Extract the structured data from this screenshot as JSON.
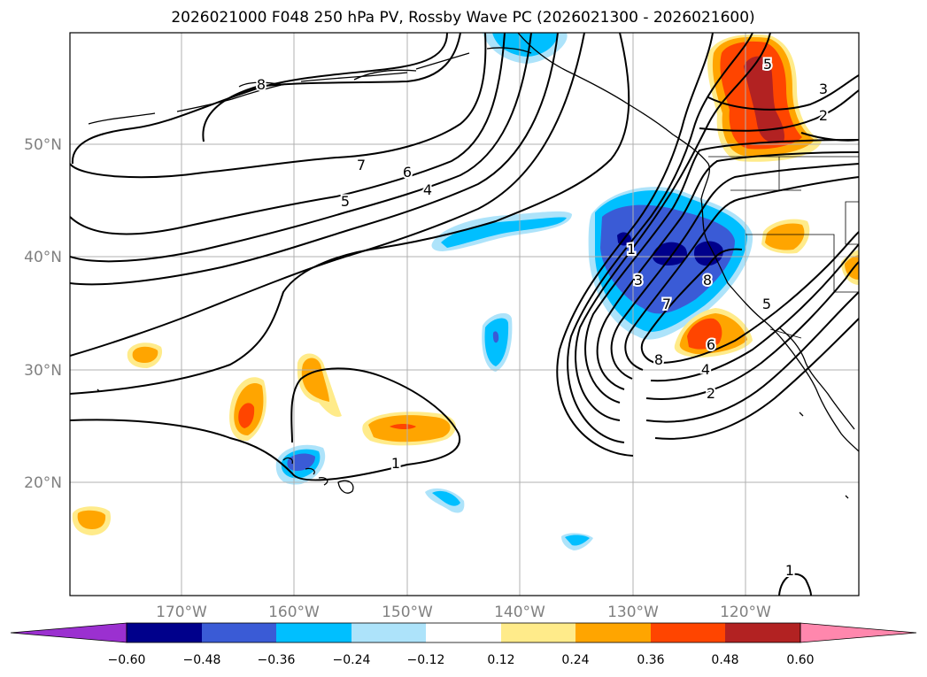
{
  "title": "2026021000 F048 250 hPa PV, Rossby Wave PC (2026021300 - 2026021600)",
  "chart_data": {
    "type": "heatmap",
    "title": "2026021000 F048 250 hPa PV, Rossby Wave PC (2026021300 - 2026021600)",
    "lon_range": [
      -180,
      -110
    ],
    "lat_range": [
      10,
      60
    ],
    "grid": true,
    "lon_ticks": [
      -170,
      -160,
      -150,
      -140,
      -130,
      -120
    ],
    "lon_tick_labels": [
      "170°W",
      "160°W",
      "150°W",
      "140°W",
      "130°W",
      "120°W"
    ],
    "lat_ticks": [
      20,
      30,
      40,
      50
    ],
    "lat_tick_labels": [
      "20°N",
      "30°N",
      "40°N",
      "50°N"
    ],
    "colorbar": {
      "orientation": "horizontal",
      "extend": "both",
      "levels": [
        -0.6,
        -0.48,
        -0.36,
        -0.24,
        -0.12,
        0.12,
        0.24,
        0.36,
        0.48,
        0.6
      ],
      "tick_labels": [
        "−0.60",
        "−0.48",
        "−0.36",
        "−0.24",
        "−0.12",
        "0.12",
        "0.24",
        "0.36",
        "0.48",
        "0.60"
      ],
      "colors": [
        "#9b30d0",
        "#00008b",
        "#3a5bd6",
        "#00bfff",
        "#ade3fa",
        "#ffffff",
        "#ffeb8a",
        "#ffa500",
        "#ff4500",
        "#b22222",
        "#ff87ad"
      ]
    },
    "pc_anomalies": [
      {
        "lon": -128,
        "lat": 40,
        "value": -0.6
      },
      {
        "lon": -159,
        "lat": 22,
        "value": -0.48
      },
      {
        "lon": -147,
        "lat": 40,
        "value": -0.24
      },
      {
        "lon": -143,
        "lat": 31,
        "value": -0.36
      },
      {
        "lon": -146,
        "lat": 19,
        "value": -0.24
      },
      {
        "lon": -135,
        "lat": 15,
        "value": -0.24
      },
      {
        "lon": -120,
        "lat": 55,
        "value": 0.48
      },
      {
        "lon": -124,
        "lat": 33,
        "value": 0.36
      },
      {
        "lon": -150,
        "lat": 25,
        "value": 0.36
      },
      {
        "lon": -165,
        "lat": 26,
        "value": 0.36
      },
      {
        "lon": -159,
        "lat": 29,
        "value": 0.24
      },
      {
        "lon": -116,
        "lat": 42,
        "value": 0.24
      },
      {
        "lon": -175,
        "lat": 31,
        "value": 0.24
      },
      {
        "lon": -178,
        "lat": 16,
        "value": 0.24
      }
    ],
    "pv_contour_labels": [
      "8",
      "7",
      "6",
      "5",
      "4",
      "1",
      "3",
      "7",
      "8",
      "8",
      "6",
      "5",
      "4",
      "2",
      "5",
      "3",
      "2",
      "1",
      "1"
    ]
  }
}
